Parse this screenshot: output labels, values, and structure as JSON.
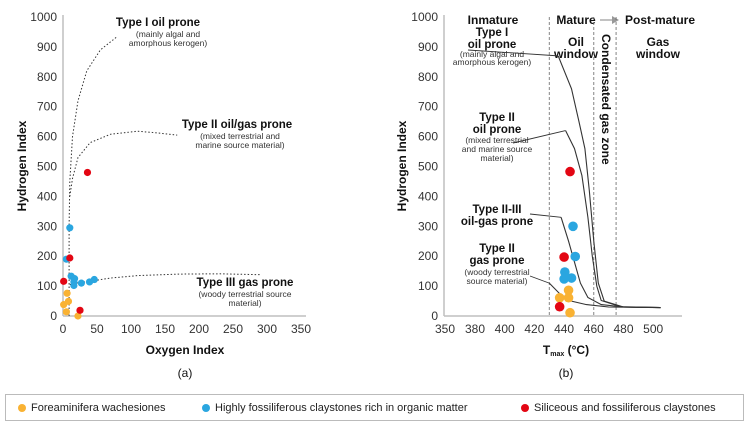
{
  "colors": {
    "foraminifera": "#f9b233",
    "claystones_organic": "#2aa6e0",
    "siliceous": "#e30613",
    "axis": "#bfbfbf",
    "curve": "#333333"
  },
  "legend": [
    {
      "label": "Foreaminifera wachesiones",
      "color": "#f9b233"
    },
    {
      "label": "Highly fossiliferous claystones rich in organic matter",
      "color": "#2aa6e0"
    },
    {
      "label": "Siliceous and fossiliferous claystones",
      "color": "#e30613"
    }
  ],
  "chart_data": [
    {
      "type": "scatter",
      "panel_label": "(a)",
      "xlabel": "Oxygen Index",
      "ylabel": "Hydrogen Index",
      "xlim": [
        0,
        350
      ],
      "ylim": [
        0,
        1000
      ],
      "xticks": [
        0,
        50,
        100,
        150,
        200,
        250,
        300,
        350
      ],
      "yticks": [
        0,
        100,
        200,
        300,
        400,
        500,
        600,
        700,
        800,
        900,
        1000
      ],
      "grid": false,
      "series": [
        {
          "name": "Foreaminifera wachesiones",
          "color": "#f9b233",
          "points": [
            [
              6,
              76
            ],
            [
              1,
              38
            ],
            [
              8,
              49
            ],
            [
              5,
              14
            ],
            [
              22,
              0
            ]
          ]
        },
        {
          "name": "Highly fossiliferous claystones rich in organic matter",
          "color": "#2aa6e0",
          "points": [
            [
              10,
              295
            ],
            [
              5,
              190
            ],
            [
              12,
              133
            ],
            [
              17,
              125
            ],
            [
              16,
              114
            ],
            [
              16,
              102
            ],
            [
              27,
              110
            ],
            [
              39,
              114
            ],
            [
              46,
              122
            ]
          ]
        },
        {
          "name": "Siliceous and fossiliferous claystones",
          "color": "#e30613",
          "points": [
            [
              36,
              480
            ],
            [
              10,
              194
            ],
            [
              1,
              116
            ],
            [
              25,
              19
            ]
          ]
        }
      ],
      "reference_curves": [
        {
          "label": "Type I oil prone",
          "note": [
            "(mainly algal and",
            "amorphous kerogen)"
          ],
          "points": [
            [
              9,
              0
            ],
            [
              9,
              300
            ],
            [
              10,
              450
            ],
            [
              14,
              600
            ],
            [
              22,
              720
            ],
            [
              35,
              820
            ],
            [
              55,
              890
            ],
            [
              80,
              935
            ]
          ]
        },
        {
          "label": "Type II oil/gas prone",
          "note": [
            "(mixed terrestrial and",
            "marine source material)"
          ],
          "points": [
            [
              10,
              400
            ],
            [
              14,
              460
            ],
            [
              22,
              530
            ],
            [
              40,
              580
            ],
            [
              70,
              608
            ],
            [
              110,
              618
            ],
            [
              140,
              612
            ],
            [
              168,
              605
            ]
          ]
        },
        {
          "label": "Type III gas prone",
          "note": [
            "(woody terrestrial source",
            "material)"
          ],
          "points": [
            [
              10,
              105
            ],
            [
              20,
              110
            ],
            [
              45,
              118
            ],
            [
              70,
              127
            ],
            [
              110,
              135
            ],
            [
              170,
              140
            ],
            [
              230,
              141
            ],
            [
              290,
              138
            ]
          ]
        }
      ]
    },
    {
      "type": "scatter",
      "panel_label": "(b)",
      "xlabel": "T",
      "xlabel_sub": "max",
      "xlabel_unit": " (°C)",
      "ylabel": "Hydrogen Index",
      "ylim": [
        0,
        1000
      ],
      "xticks": [
        350,
        380,
        400,
        420,
        440,
        460,
        480,
        500
      ],
      "yticks": [
        0,
        100,
        200,
        300,
        400,
        500,
        600,
        700,
        800,
        900,
        1000
      ],
      "grid": false,
      "series": [
        {
          "name": "Foreaminifera wachesiones",
          "color": "#f9b233",
          "points": [
            [
              443,
              86
            ],
            [
              437,
              61
            ],
            [
              443,
              61
            ],
            [
              444,
              11
            ]
          ]
        },
        {
          "name": "Highly fossiliferous claystones rich in organic matter",
          "color": "#2aa6e0",
          "points": [
            [
              446,
              300
            ],
            [
              447.5,
              199
            ],
            [
              440.5,
              147
            ],
            [
              440,
              124
            ],
            [
              445,
              127
            ]
          ]
        },
        {
          "name": "Siliceous and fossiliferous claystones",
          "color": "#e30613",
          "points": [
            [
              444,
              483
            ],
            [
              440,
              197
            ],
            [
              437,
              31
            ]
          ]
        }
      ],
      "zone_boundaries": [
        430,
        460,
        475
      ],
      "zones": {
        "inmature": "Inmature",
        "mature": "Mature",
        "post_mature": "Post-mature",
        "oil_window": [
          "Oil",
          "window"
        ],
        "condensate": "Condensated gas zone",
        "gas_window": [
          "Gas",
          "window"
        ]
      },
      "reference_curves": [
        {
          "label": [
            "Type I",
            "oil prone"
          ],
          "note": [
            "(mainly algal and",
            "amorphous kerogen)"
          ],
          "points": [
            [
              436,
              870
            ],
            [
              445,
              760
            ],
            [
              450,
              650
            ],
            [
              454,
              560
            ],
            [
              457,
              420
            ],
            [
              460,
              250
            ],
            [
              463,
              110
            ],
            [
              467,
              50
            ],
            [
              480,
              30
            ],
            [
              505,
              28
            ]
          ]
        },
        {
          "label": [
            "Type II",
            "oil prone"
          ],
          "note": [
            "(mixed terrestrial",
            "and marine source",
            "material)"
          ],
          "points": [
            [
              441,
              620
            ],
            [
              447,
              560
            ],
            [
              452,
              470
            ],
            [
              456,
              330
            ],
            [
              459,
              200
            ],
            [
              462,
              100
            ],
            [
              465,
              52
            ],
            [
              478,
              31
            ],
            [
              505,
              28
            ]
          ]
        },
        {
          "label": [
            "Type II-III",
            "oil-gas prone"
          ],
          "note": [],
          "points": [
            [
              438,
              330
            ],
            [
              443,
              250
            ],
            [
              447,
              180
            ],
            [
              451,
              110
            ],
            [
              456,
              62
            ],
            [
              465,
              38
            ],
            [
              480,
              30
            ],
            [
              505,
              28
            ]
          ]
        },
        {
          "label": [
            "Type II",
            "gas prone"
          ],
          "note": [
            "(woody terrestrial",
            "source material)"
          ],
          "points": [
            [
              430,
              110
            ],
            [
              437,
              75
            ],
            [
              445,
              50
            ],
            [
              455,
              38
            ],
            [
              470,
              30
            ],
            [
              505,
              28
            ]
          ]
        }
      ]
    }
  ]
}
